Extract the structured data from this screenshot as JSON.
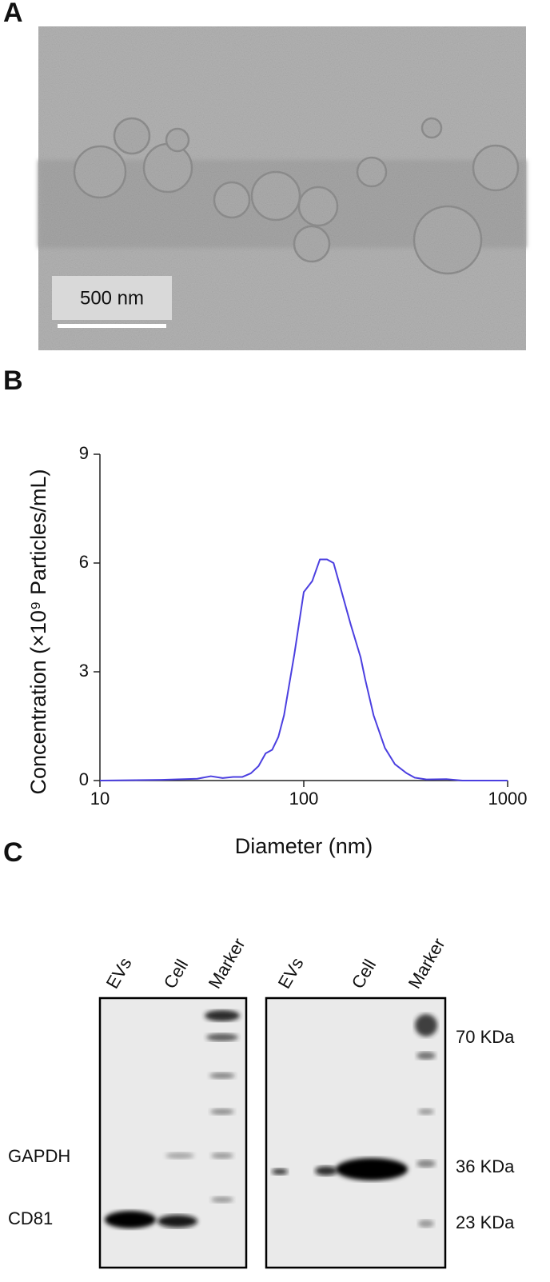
{
  "panel_a": {
    "label": "A",
    "scale_bar": "500 nm"
  },
  "chart_data": {
    "type": "line",
    "panel_label": "B",
    "xlabel": "Diameter (nm)",
    "ylabel": "Concentration (×10⁹ Particles/mL)",
    "x": [
      10,
      20,
      30,
      35,
      40,
      45,
      50,
      55,
      60,
      65,
      70,
      75,
      80,
      90,
      100,
      110,
      120,
      130,
      140,
      150,
      170,
      190,
      200,
      220,
      250,
      280,
      320,
      350,
      400,
      500,
      600,
      1000
    ],
    "series": [
      {
        "color": "#4b3fe0",
        "values": [
          0,
          0.02,
          0.05,
          0.12,
          0.07,
          0.1,
          0.1,
          0.2,
          0.4,
          0.75,
          0.85,
          1.2,
          1.8,
          3.5,
          5.2,
          5.5,
          6.1,
          6.1,
          6.0,
          5.4,
          4.3,
          3.4,
          2.8,
          1.8,
          0.9,
          0.45,
          0.2,
          0.08,
          0.03,
          0.04,
          0,
          0
        ]
      }
    ],
    "xlim": [
      10,
      1000
    ],
    "xticks": [
      10,
      100,
      1000
    ],
    "xscale": "log",
    "ylim": [
      0,
      9
    ],
    "yticks": [
      0,
      3,
      6,
      9
    ]
  },
  "panel_c": {
    "label": "C",
    "left_blot": {
      "lanes": [
        "EVs",
        "Cell",
        "Marker"
      ],
      "bands": [
        "GAPDH",
        "CD81"
      ]
    },
    "right_blot": {
      "lanes": [
        "EVs",
        "Cell",
        "Marker"
      ],
      "markers": [
        "70 KDa",
        "36 KDa",
        "23 KDa"
      ]
    }
  }
}
